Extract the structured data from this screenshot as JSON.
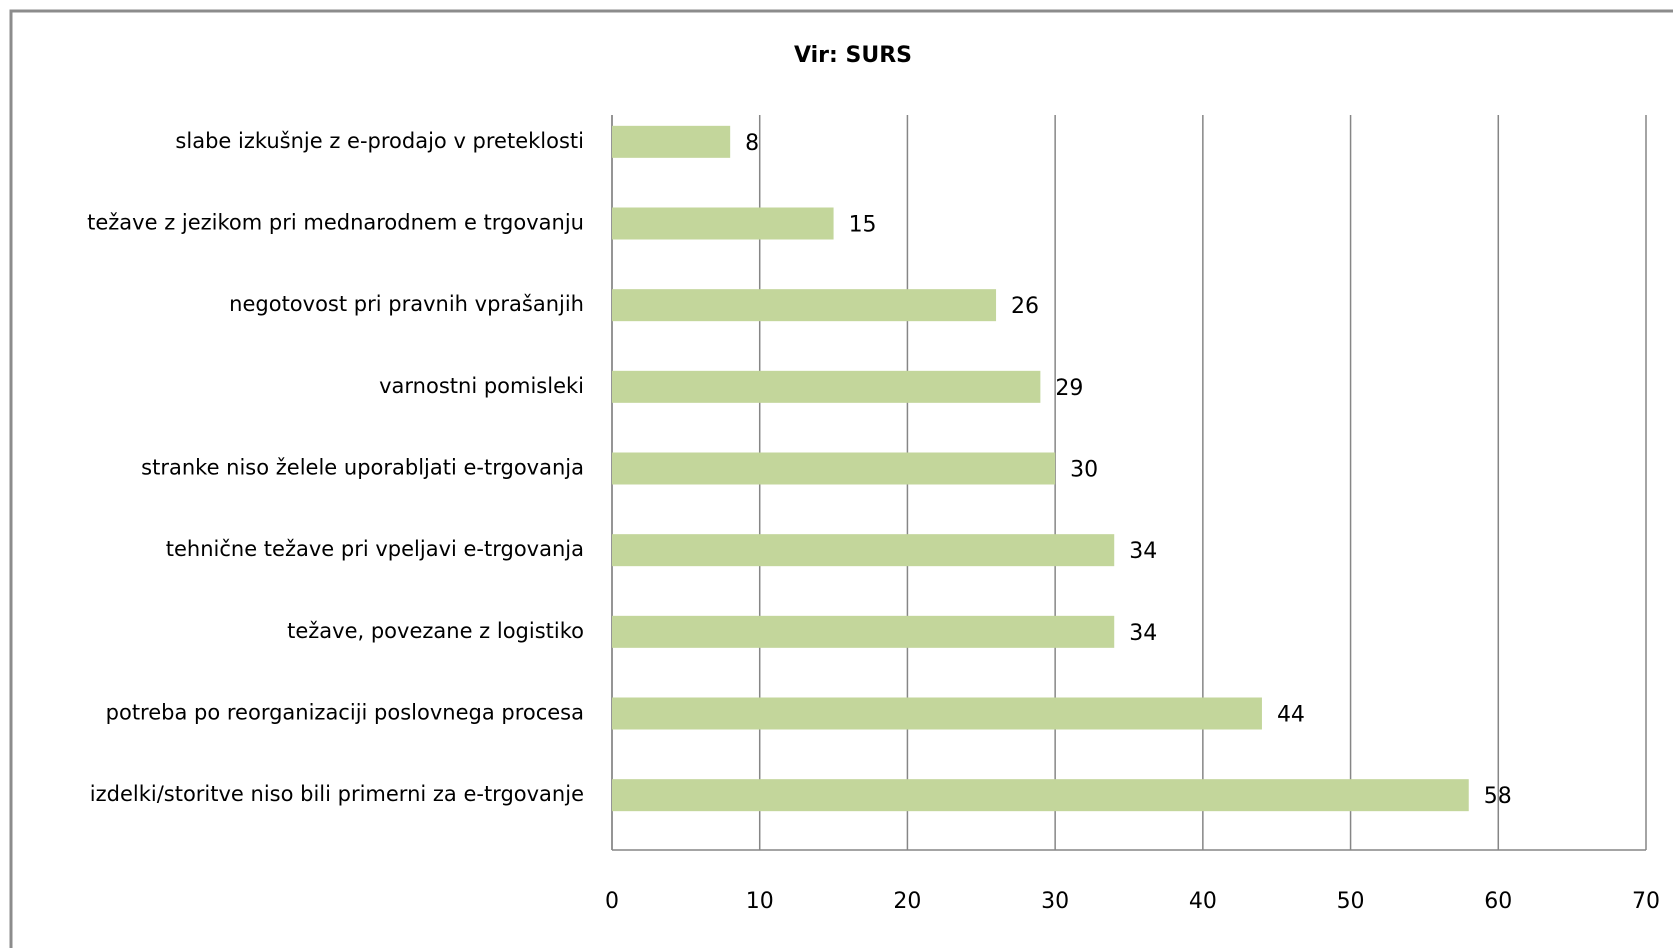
{
  "chart_data": {
    "type": "bar",
    "orientation": "horizontal",
    "title": "Vir: SURS",
    "categories": [
      "slabe izkušnje  z e-prodajo v preteklosti",
      "težave z jezikom pri mednarodnem e  trgovanju",
      "negotovost pri pravnih vprašanjih",
      "varnostni pomisleki",
      "stranke niso  želele  uporabljati e-trgovanja",
      "tehnične težave  pri vpeljavi e-trgovanja",
      "težave, povezane z logistiko",
      "potreba po reorganizaciji poslovnega procesa",
      "izdelki/storitve niso bili primerni za e-trgovanje"
    ],
    "values": [
      8,
      15,
      26,
      29,
      30,
      34,
      34,
      44,
      58
    ],
    "color": "#c3d69b",
    "xlim": [
      0,
      70
    ],
    "xticks": [
      0,
      10,
      20,
      30,
      40,
      50,
      60,
      70
    ],
    "grid": true
  }
}
